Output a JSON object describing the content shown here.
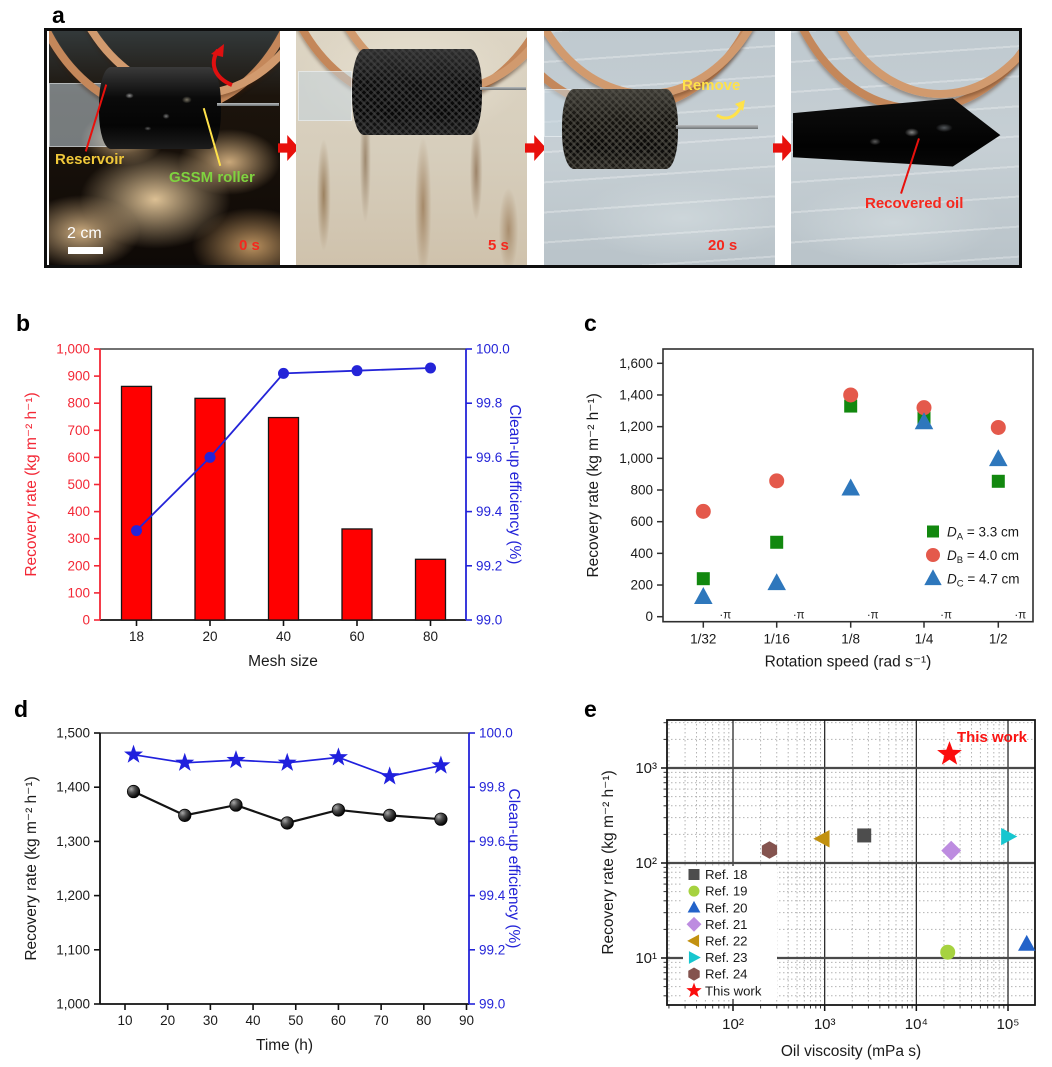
{
  "panels": {
    "a": {
      "label": "a",
      "photos": [
        {
          "timestamp": "0 s",
          "scalebar": "2 cm",
          "labels": {
            "reservoir": "Reservoir",
            "roller": "GSSM roller"
          },
          "label_colors": {
            "reservoir": "#f0c83a",
            "roller": "#7fd33f"
          }
        },
        {
          "timestamp": "5 s",
          "labels": {}
        },
        {
          "timestamp": "20 s",
          "labels": {
            "remove": "Remove"
          },
          "label_colors": {
            "remove": "#ffe24a"
          }
        },
        {
          "timestamp": "",
          "labels": {
            "recovered": "Recovered oil"
          },
          "label_colors": {
            "recovered": "#f5281e"
          }
        }
      ]
    },
    "b": {
      "label": "b"
    },
    "c": {
      "label": "c"
    },
    "d": {
      "label": "d"
    },
    "e": {
      "label": "e"
    }
  },
  "chart_data": [
    {
      "panel": "b",
      "type": "bar",
      "categories": [
        "18",
        "20",
        "40",
        "60",
        "80"
      ],
      "xlabel": "Mesh size",
      "ylabel_left": "Recovery rate (kg m⁻² h⁻¹)",
      "ylabel_right": "Clean-up efficiency (%)",
      "ylim_left": [
        0,
        1000
      ],
      "yticks_left_labels": [
        "0",
        "100",
        "200",
        "300",
        "400",
        "500",
        "600",
        "700",
        "800",
        "900",
        "1,000"
      ],
      "ylim_right": [
        99.0,
        100.0
      ],
      "yticks_right_labels": [
        "99.0",
        "99.2",
        "99.4",
        "99.6",
        "99.8",
        "100.0"
      ],
      "axis_color_left": "#f32735",
      "axis_color_right": "#2424d8",
      "series": [
        {
          "name": "Recovery rate",
          "render": "bar",
          "color": "#ff0000",
          "axis": "left",
          "values": [
            862,
            818,
            747,
            336,
            224
          ]
        },
        {
          "name": "Clean-up efficiency",
          "render": "line",
          "color": "#2424d8",
          "axis": "right",
          "values": [
            99.33,
            99.6,
            99.91,
            99.92,
            99.93
          ]
        }
      ]
    },
    {
      "panel": "c",
      "type": "scatter",
      "x_categories": [
        "1/32",
        "1/16",
        "1/8",
        "1/4",
        "1/2"
      ],
      "x_suffix": "·π",
      "xlabel": "Rotation speed (rad s⁻¹)",
      "ylabel": "Recovery rate (kg m⁻² h⁻¹)",
      "ylim": [
        0,
        1600
      ],
      "yticks_labels": [
        "0",
        "200",
        "400",
        "600",
        "800",
        "1,000",
        "1,200",
        "1,400",
        "1,600"
      ],
      "series": [
        {
          "legend_d": "D",
          "legend_sub": "A",
          "legend_rest": " = 3.3 cm",
          "marker": "square",
          "color": "#12880f",
          "values": [
            240,
            470,
            1330,
            1255,
            855
          ]
        },
        {
          "legend_d": "D",
          "legend_sub": "B",
          "legend_rest": " = 4.0 cm",
          "marker": "circle",
          "color": "#e4594b",
          "values": [
            665,
            858,
            1400,
            1320,
            1195
          ]
        },
        {
          "legend_d": "D",
          "legend_sub": "C",
          "legend_rest": " = 4.7 cm",
          "marker": "triangle-up",
          "color": "#2e77bc",
          "values": [
            125,
            212,
            810,
            1228,
            995
          ]
        }
      ]
    },
    {
      "panel": "d",
      "type": "line",
      "x": [
        12,
        24,
        36,
        48,
        60,
        72,
        84
      ],
      "xlim": [
        4,
        93
      ],
      "xticks": [
        "10",
        "20",
        "30",
        "40",
        "50",
        "60",
        "70",
        "80",
        "90"
      ],
      "xlabel": "Time (h)",
      "ylabel_left": "Recovery rate (kg m⁻² h⁻¹)",
      "ylabel_right": "Clean-up efficiency (%)",
      "ylim_left": [
        1000,
        1500
      ],
      "yticks_left_labels": [
        "1,000",
        "1,100",
        "1,200",
        "1,300",
        "1,400",
        "1,500"
      ],
      "ylim_right": [
        99.0,
        100.0
      ],
      "yticks_right_labels": [
        "99.0",
        "99.2",
        "99.4",
        "99.6",
        "99.8",
        "100.0"
      ],
      "axis_color_right": "#2424d8",
      "series": [
        {
          "name": "Recovery rate",
          "marker": "sphere",
          "color": "#141414",
          "axis": "left",
          "values": [
            1392,
            1348,
            1367,
            1334,
            1358,
            1348,
            1341
          ]
        },
        {
          "name": "Clean-up efficiency",
          "marker": "star",
          "color": "#2020dd",
          "axis": "right",
          "values": [
            99.92,
            99.89,
            99.9,
            99.89,
            99.91,
            99.84,
            99.88
          ]
        }
      ]
    },
    {
      "panel": "e",
      "type": "scatter",
      "xscale": "log",
      "yscale": "log",
      "xlabel": "Oil viscosity (mPa s)",
      "ylabel": "Recovery rate (kg m⁻² h⁻¹)",
      "xlim": [
        19,
        197000
      ],
      "ylim": [
        3.2,
        3200
      ],
      "xticks": [
        {
          "value": 100,
          "label": "10²"
        },
        {
          "value": 1000,
          "label": "10³"
        },
        {
          "value": 10000,
          "label": "10⁴"
        },
        {
          "value": 100000,
          "label": "10⁵"
        }
      ],
      "yticks": [
        {
          "value": 10,
          "label": "10¹"
        },
        {
          "value": 100,
          "label": "10²"
        },
        {
          "value": 1000,
          "label": "10³"
        }
      ],
      "annotation": {
        "text": "This work",
        "color": "#fa1412"
      },
      "points": [
        {
          "name": "Ref. 18",
          "marker": "square",
          "color": "#4d4d4d",
          "x": 2700,
          "y": 195
        },
        {
          "name": "Ref. 19",
          "marker": "circle",
          "color": "#a6d23f",
          "x": 22000,
          "y": 11.5
        },
        {
          "name": "Ref. 20",
          "marker": "triangle-up",
          "color": "#2363c9",
          "x": 160000,
          "y": 14
        },
        {
          "name": "Ref. 21",
          "marker": "diamond",
          "color": "#bd8ce0",
          "x": 24000,
          "y": 135
        },
        {
          "name": "Ref. 22",
          "marker": "triangle-left",
          "color": "#c29110",
          "x": 950,
          "y": 180
        },
        {
          "name": "Ref. 23",
          "marker": "triangle-right",
          "color": "#17c6cf",
          "x": 100000,
          "y": 190
        },
        {
          "name": "Ref. 24",
          "marker": "hexagon",
          "color": "#84534e",
          "x": 250,
          "y": 137
        },
        {
          "name": "This work",
          "marker": "star",
          "color": "#fb0d0d",
          "x": 23000,
          "y": 1400
        }
      ]
    }
  ]
}
